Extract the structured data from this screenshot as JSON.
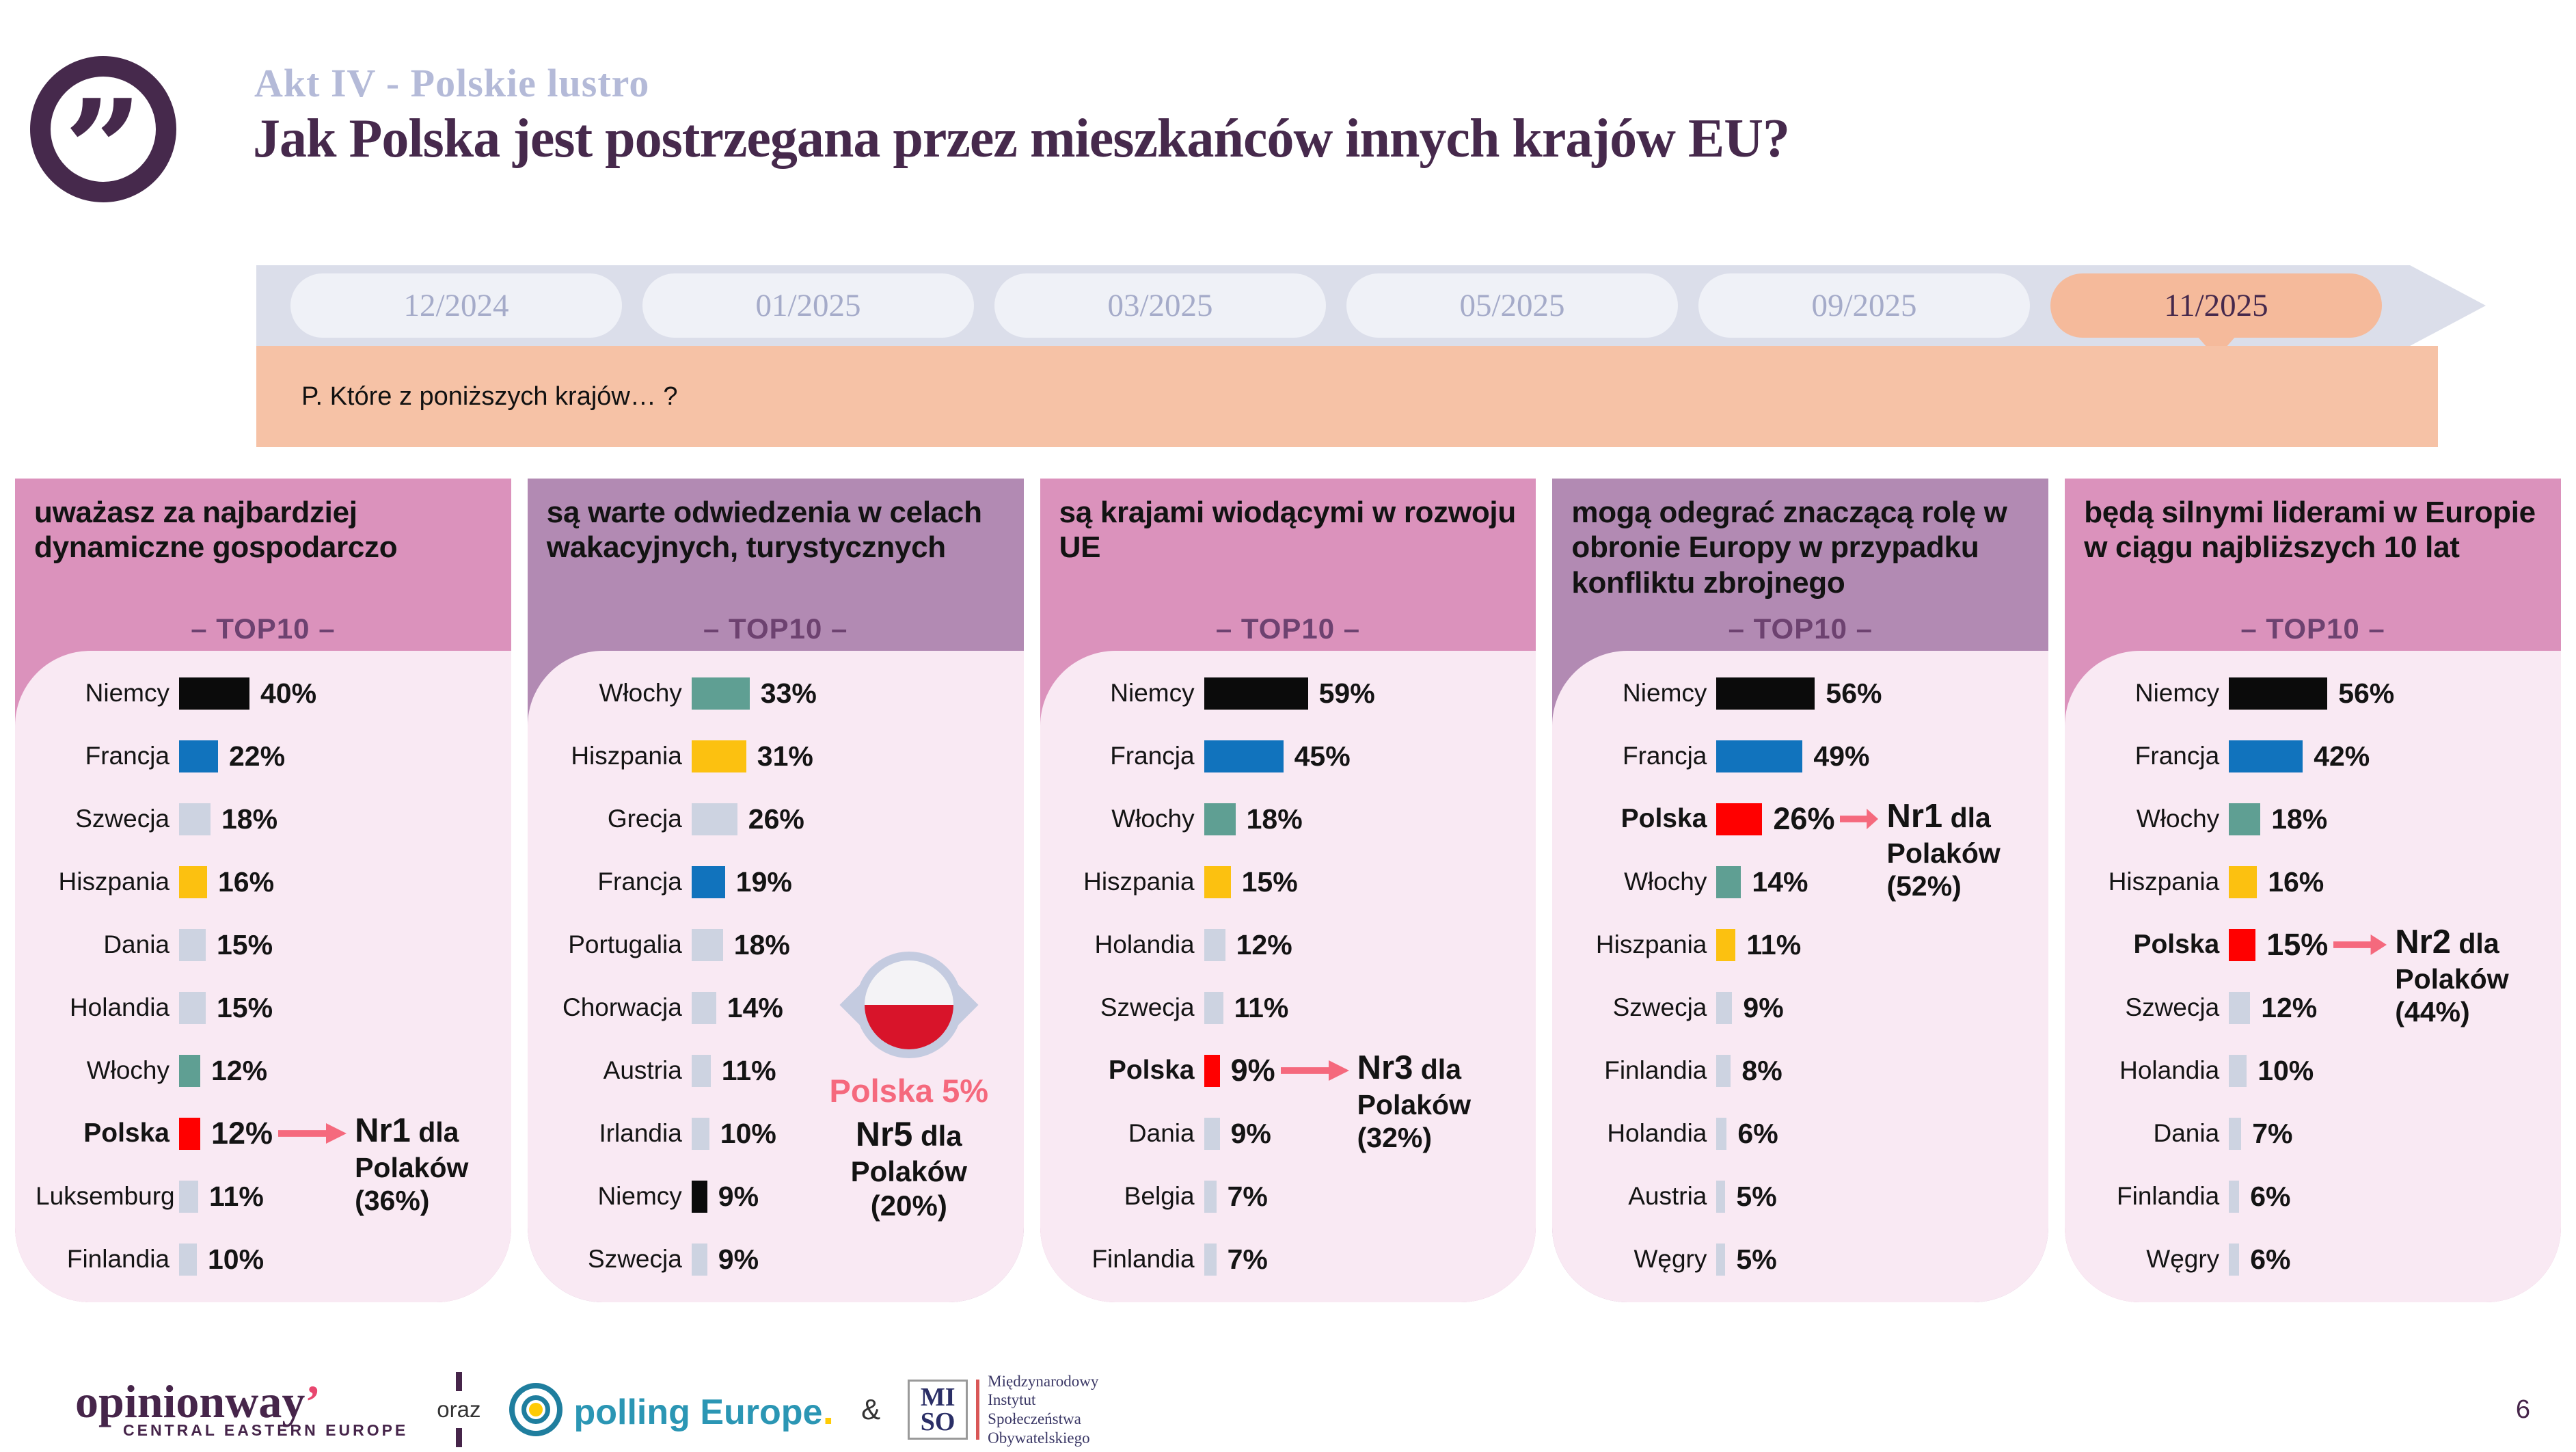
{
  "header": {
    "kicker": "Akt IV - Polskie lustro",
    "title": "Jak Polska jest postrzegana przez mieszkańców innych krajów EU?"
  },
  "timeline": {
    "tabs": [
      "12/2024",
      "01/2025",
      "03/2025",
      "05/2025",
      "09/2025",
      "11/2025"
    ],
    "active_tab": "11/2025",
    "question": "P. Które z poniższych krajów… ?"
  },
  "colors": {
    "title_purple": "#46294C",
    "kicker": "#B4BAD8",
    "header_pink": "#DB92BC",
    "header_mauve": "#B28AB3",
    "body_pink": "#F9E9F3",
    "top10_text": "#6D4270",
    "accent_pink": "#F5697D",
    "active_tab": "#F5BA9B",
    "question_bg": "#F6C2A6",
    "bar": {
      "black": "#0B0B0B",
      "blue": "#1173BD",
      "gray": "#CDD3E1",
      "yellow": "#FCC110",
      "teal": "#5F9F93",
      "red": "#FF0000"
    }
  },
  "panels": [
    {
      "title": "uważasz za najbardziej dynamiczne gospodarczo",
      "top10": "– TOP10 –",
      "rows": [
        {
          "country": "Niemcy",
          "pct": 40,
          "color": "black"
        },
        {
          "country": "Francja",
          "pct": 22,
          "color": "blue"
        },
        {
          "country": "Szwecja",
          "pct": 18,
          "color": "gray"
        },
        {
          "country": "Hiszpania",
          "pct": 16,
          "color": "yellow"
        },
        {
          "country": "Dania",
          "pct": 15,
          "color": "gray"
        },
        {
          "country": "Holandia",
          "pct": 15,
          "color": "gray"
        },
        {
          "country": "Włochy",
          "pct": 12,
          "color": "teal"
        },
        {
          "country": "Polska",
          "pct": 12,
          "color": "red",
          "bold": true,
          "note": {
            "nr": "Nr1",
            "dla": "dla",
            "line2": "Polaków",
            "line3": "(36%)"
          }
        },
        {
          "country": "Luksemburg",
          "pct": 11,
          "color": "gray"
        },
        {
          "country": "Finlandia",
          "pct": 10,
          "color": "gray"
        }
      ]
    },
    {
      "title": "są warte odwiedzenia w celach wakacyjnych, turystycznych",
      "top10": "– TOP10 –",
      "rows": [
        {
          "country": "Włochy",
          "pct": 33,
          "color": "teal"
        },
        {
          "country": "Hiszpania",
          "pct": 31,
          "color": "yellow"
        },
        {
          "country": "Grecja",
          "pct": 26,
          "color": "gray"
        },
        {
          "country": "Francja",
          "pct": 19,
          "color": "blue"
        },
        {
          "country": "Portugalia",
          "pct": 18,
          "color": "gray"
        },
        {
          "country": "Chorwacja",
          "pct": 14,
          "color": "gray"
        },
        {
          "country": "Austria",
          "pct": 11,
          "color": "gray"
        },
        {
          "country": "Irlandia",
          "pct": 10,
          "color": "gray"
        },
        {
          "country": "Niemcy",
          "pct": 9,
          "color": "black"
        },
        {
          "country": "Szwecja",
          "pct": 9,
          "color": "gray"
        }
      ],
      "badge": {
        "title": "Polska 5%",
        "nr": "Nr5",
        "dla": "dla",
        "line2": "Polaków",
        "line3": "(20%)"
      }
    },
    {
      "title": "są krajami wiodącymi w rozwoju UE",
      "top10": "– TOP10 –",
      "rows": [
        {
          "country": "Niemcy",
          "pct": 59,
          "color": "black"
        },
        {
          "country": "Francja",
          "pct": 45,
          "color": "blue"
        },
        {
          "country": "Włochy",
          "pct": 18,
          "color": "teal"
        },
        {
          "country": "Hiszpania",
          "pct": 15,
          "color": "yellow"
        },
        {
          "country": "Holandia",
          "pct": 12,
          "color": "gray"
        },
        {
          "country": "Szwecja",
          "pct": 11,
          "color": "gray"
        },
        {
          "country": "Polska",
          "pct": 9,
          "color": "red",
          "bold": true,
          "note": {
            "nr": "Nr3",
            "dla": "dla",
            "line2": "Polaków",
            "line3": "(32%)"
          }
        },
        {
          "country": "Dania",
          "pct": 9,
          "color": "gray"
        },
        {
          "country": "Belgia",
          "pct": 7,
          "color": "gray"
        },
        {
          "country": "Finlandia",
          "pct": 7,
          "color": "gray"
        }
      ]
    },
    {
      "title": "mogą odegrać znaczącą rolę w obronie Europy w przypadku konfliktu zbrojnego",
      "top10": "– TOP10 –",
      "rows": [
        {
          "country": "Niemcy",
          "pct": 56,
          "color": "black"
        },
        {
          "country": "Francja",
          "pct": 49,
          "color": "blue"
        },
        {
          "country": "Polska",
          "pct": 26,
          "color": "red",
          "bold": true,
          "note": {
            "nr": "Nr1",
            "dla": "dla",
            "line2": "Polaków",
            "line3": "(52%)"
          }
        },
        {
          "country": "Włochy",
          "pct": 14,
          "color": "teal"
        },
        {
          "country": "Hiszpania",
          "pct": 11,
          "color": "yellow"
        },
        {
          "country": "Szwecja",
          "pct": 9,
          "color": "gray"
        },
        {
          "country": "Finlandia",
          "pct": 8,
          "color": "gray"
        },
        {
          "country": "Holandia",
          "pct": 6,
          "color": "gray"
        },
        {
          "country": "Austria",
          "pct": 5,
          "color": "gray"
        },
        {
          "country": "Węgry",
          "pct": 5,
          "color": "gray"
        }
      ]
    },
    {
      "title": "będą silnymi liderami w Europie w ciągu najbliższych 10 lat",
      "top10": "– TOP10 –",
      "rows": [
        {
          "country": "Niemcy",
          "pct": 56,
          "color": "black"
        },
        {
          "country": "Francja",
          "pct": 42,
          "color": "blue"
        },
        {
          "country": "Włochy",
          "pct": 18,
          "color": "teal"
        },
        {
          "country": "Hiszpania",
          "pct": 16,
          "color": "yellow"
        },
        {
          "country": "Polska",
          "pct": 15,
          "color": "red",
          "bold": true,
          "note": {
            "nr": "Nr2",
            "dla": "dla",
            "line2": "Polaków",
            "line3": "(44%)"
          }
        },
        {
          "country": "Szwecja",
          "pct": 12,
          "color": "gray"
        },
        {
          "country": "Holandia",
          "pct": 10,
          "color": "gray"
        },
        {
          "country": "Dania",
          "pct": 7,
          "color": "gray"
        },
        {
          "country": "Finlandia",
          "pct": 6,
          "color": "gray"
        },
        {
          "country": "Węgry",
          "pct": 6,
          "color": "gray"
        }
      ]
    }
  ],
  "footer": {
    "opinionway": "opinionway",
    "opinionway_apostrophe": "’",
    "opinionway_sub": "CENTRAL EASTERN EUROPE",
    "oraz": "oraz",
    "polling": "polling Europe",
    "polling_dot": ".",
    "amp": "&",
    "miso_mi": "MI",
    "miso_so": "SO",
    "miso_lines": [
      "Międzynarodowy",
      "Instytut",
      "Społeczeństwa",
      "Obywatelskiego"
    ]
  },
  "page_number": "6",
  "chart_data": [
    {
      "type": "bar",
      "orientation": "horizontal",
      "unit": "%",
      "title": "uważasz za najbardziej dynamiczne gospodarczo – TOP10",
      "categories": [
        "Niemcy",
        "Francja",
        "Szwecja",
        "Hiszpania",
        "Dania",
        "Holandia",
        "Włochy",
        "Polska",
        "Luksemburg",
        "Finlandia"
      ],
      "values": [
        40,
        22,
        18,
        16,
        15,
        15,
        12,
        12,
        11,
        10
      ],
      "annotation": "Polska: Nr1 dla Polaków (36%)"
    },
    {
      "type": "bar",
      "orientation": "horizontal",
      "unit": "%",
      "title": "są warte odwiedzenia w celach wakacyjnych, turystycznych – TOP10",
      "categories": [
        "Włochy",
        "Hiszpania",
        "Grecja",
        "Francja",
        "Portugalia",
        "Chorwacja",
        "Austria",
        "Irlandia",
        "Niemcy",
        "Szwecja"
      ],
      "values": [
        33,
        31,
        26,
        19,
        18,
        14,
        11,
        10,
        9,
        9
      ],
      "annotation": "Polska 5% – Nr5 dla Polaków (20%)"
    },
    {
      "type": "bar",
      "orientation": "horizontal",
      "unit": "%",
      "title": "są krajami wiodącymi w rozwoju UE – TOP10",
      "categories": [
        "Niemcy",
        "Francja",
        "Włochy",
        "Hiszpania",
        "Holandia",
        "Szwecja",
        "Polska",
        "Dania",
        "Belgia",
        "Finlandia"
      ],
      "values": [
        59,
        45,
        18,
        15,
        12,
        11,
        9,
        9,
        7,
        7
      ],
      "annotation": "Polska: Nr3 dla Polaków (32%)"
    },
    {
      "type": "bar",
      "orientation": "horizontal",
      "unit": "%",
      "title": "mogą odegrać znaczącą rolę w obronie Europy w przypadku konfliktu zbrojnego – TOP10",
      "categories": [
        "Niemcy",
        "Francja",
        "Polska",
        "Włochy",
        "Hiszpania",
        "Szwecja",
        "Finlandia",
        "Holandia",
        "Austria",
        "Węgry"
      ],
      "values": [
        56,
        49,
        26,
        14,
        11,
        9,
        8,
        6,
        5,
        5
      ],
      "annotation": "Polska: Nr1 dla Polaków (52%)"
    },
    {
      "type": "bar",
      "orientation": "horizontal",
      "unit": "%",
      "title": "będą silnymi liderami w Europie w ciągu najbliższych 10 lat – TOP10",
      "categories": [
        "Niemcy",
        "Francja",
        "Włochy",
        "Hiszpania",
        "Polska",
        "Szwecja",
        "Holandia",
        "Dania",
        "Finlandia",
        "Węgry"
      ],
      "values": [
        56,
        42,
        18,
        16,
        15,
        12,
        10,
        7,
        6,
        6
      ],
      "annotation": "Polska: Nr2 dla Polaków (44%)"
    }
  ]
}
